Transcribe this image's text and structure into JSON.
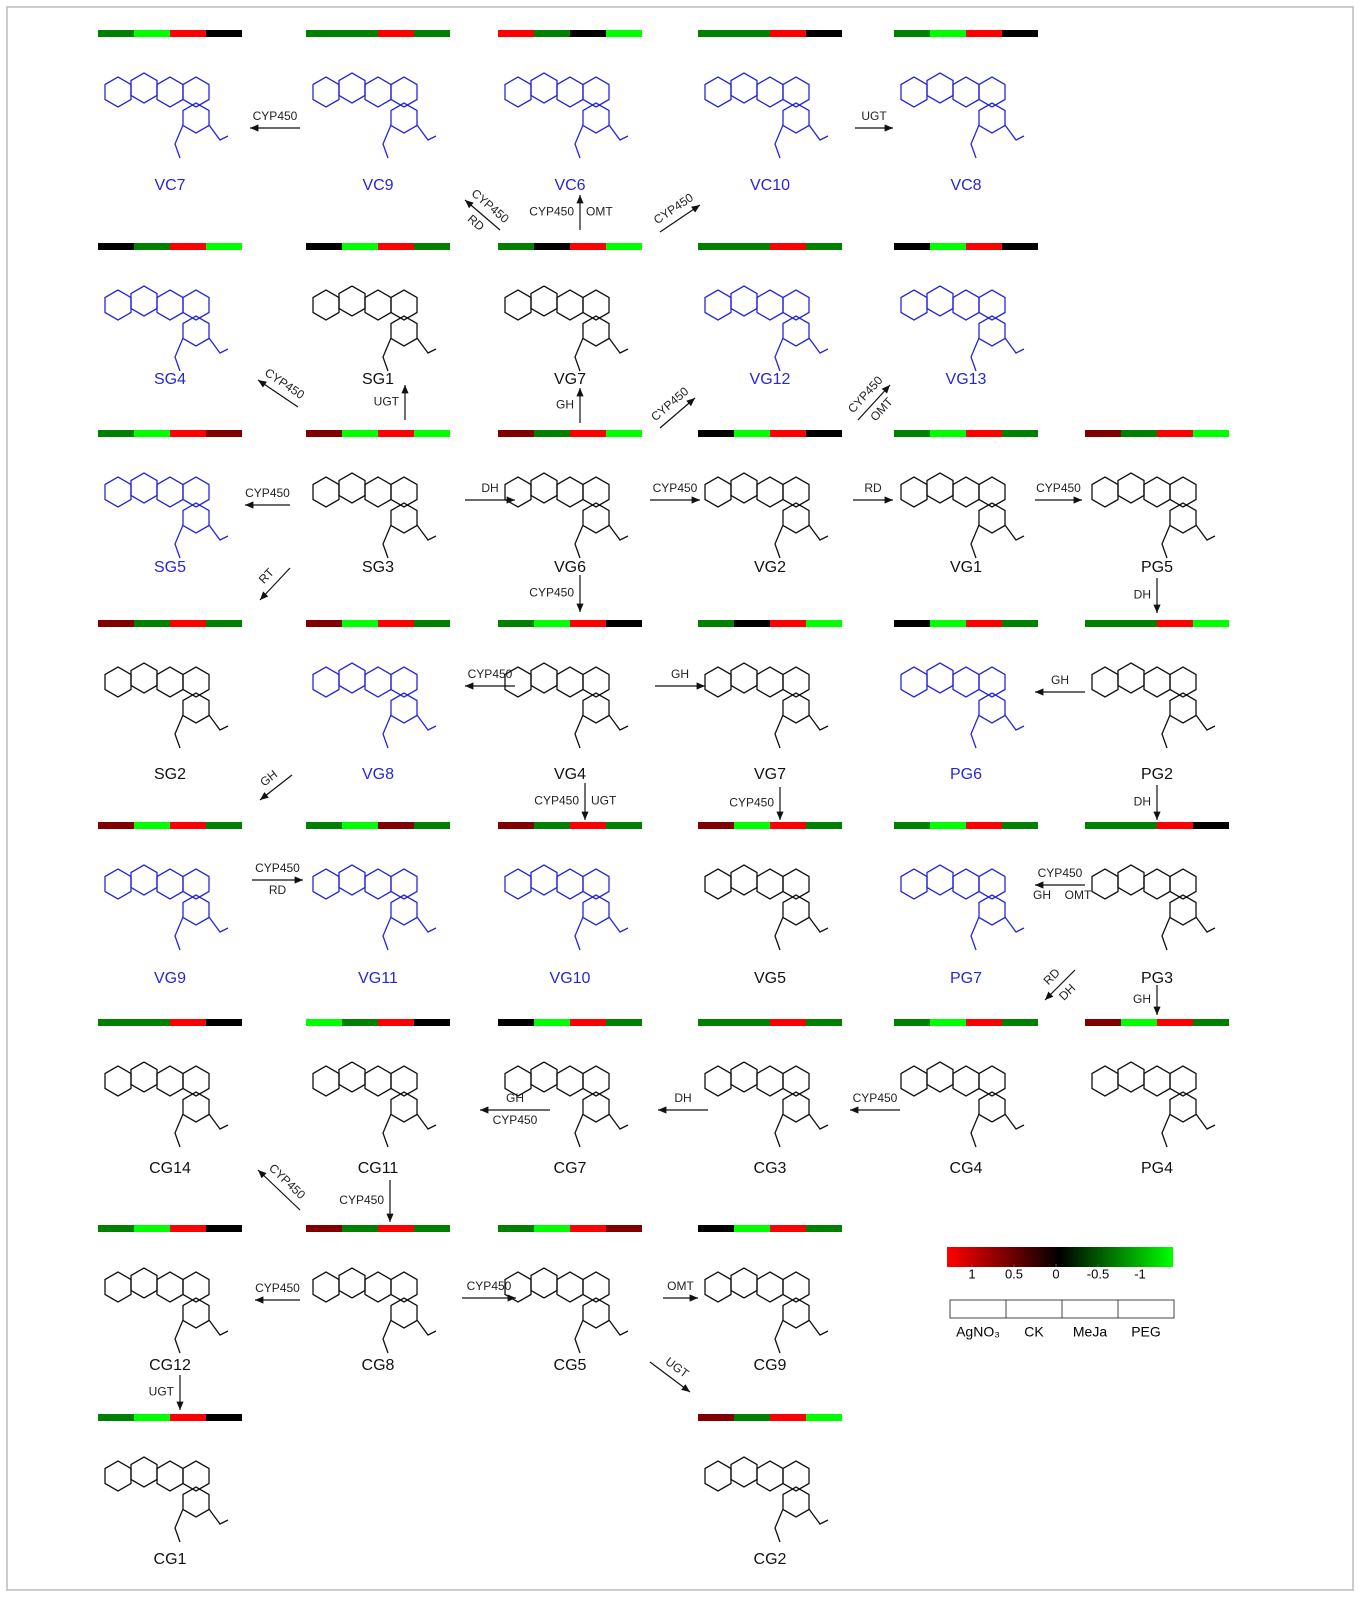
{
  "nodes": [
    {
      "label": "VC7",
      "color": "#2626d9",
      "heat": [
        -0.5,
        -1,
        1,
        0
      ]
    },
    {
      "label": "VC9",
      "color": "#2626d9",
      "heat": [
        -0.5,
        -0.5,
        1,
        -0.5
      ]
    },
    {
      "label": "VC6",
      "color": "#2626d9",
      "heat": [
        1,
        -0.5,
        0,
        -1
      ]
    },
    {
      "label": "VC10",
      "color": "#2626d9",
      "heat": [
        -0.5,
        -0.5,
        1,
        0
      ]
    },
    {
      "label": "VC8",
      "color": "#2626d9",
      "heat": [
        -0.5,
        -1,
        1,
        0
      ]
    },
    {
      "label": "SG4",
      "color": "#2626d9",
      "heat": [
        0,
        -0.5,
        1,
        -1
      ]
    },
    {
      "label": "SG1",
      "color": "#111111",
      "heat": [
        0,
        -1,
        1,
        -0.5
      ]
    },
    {
      "label": "VG7",
      "color": "#111111",
      "heat": [
        -0.5,
        0,
        1,
        -1
      ]
    },
    {
      "label": "VG12",
      "color": "#2626d9",
      "heat": [
        -0.5,
        -0.5,
        1,
        -0.5
      ]
    },
    {
      "label": "VG13",
      "color": "#2626d9",
      "heat": [
        0,
        -1,
        1,
        0
      ]
    },
    {
      "label": "SG5",
      "color": "#2626d9",
      "heat": [
        -0.5,
        -1,
        1,
        0.5
      ]
    },
    {
      "label": "SG3",
      "color": "#111111",
      "heat": [
        0.5,
        -1,
        1,
        -1
      ]
    },
    {
      "label": "VG6",
      "color": "#111111",
      "heat": [
        0.5,
        -0.5,
        1,
        -1
      ]
    },
    {
      "label": "VG2",
      "color": "#111111",
      "heat": [
        0,
        -1,
        1,
        0
      ]
    },
    {
      "label": "VG1",
      "color": "#111111",
      "heat": [
        -0.5,
        -1,
        1,
        -0.5
      ]
    },
    {
      "label": "PG5",
      "color": "#111111",
      "heat": [
        0.5,
        -0.5,
        1,
        -1
      ]
    },
    {
      "label": "SG2",
      "color": "#111111",
      "heat": [
        0.5,
        -0.5,
        1,
        -0.5
      ]
    },
    {
      "label": "VG8",
      "color": "#2626d9",
      "heat": [
        0.5,
        -1,
        1,
        -0.5
      ]
    },
    {
      "label": "VG4",
      "color": "#111111",
      "heat": [
        -0.5,
        -1,
        1,
        0
      ]
    },
    {
      "label": "VG7",
      "color": "#111111",
      "heat": [
        -0.5,
        0,
        1,
        -1
      ]
    },
    {
      "label": "PG6",
      "color": "#2626d9",
      "heat": [
        0,
        -1,
        1,
        -0.5
      ]
    },
    {
      "label": "PG2",
      "color": "#111111",
      "heat": [
        -0.5,
        -0.5,
        1,
        -1
      ]
    },
    {
      "label": "VG9",
      "color": "#2626d9",
      "heat": [
        0.5,
        -1,
        1,
        -0.5
      ]
    },
    {
      "label": "VG11",
      "color": "#2626d9",
      "heat": [
        -0.5,
        -1,
        0.5,
        -0.5
      ]
    },
    {
      "label": "VG10",
      "color": "#2626d9",
      "heat": [
        0.5,
        -0.5,
        1,
        -0.5
      ]
    },
    {
      "label": "VG5",
      "color": "#111111",
      "heat": [
        0.5,
        -1,
        1,
        -0.5
      ]
    },
    {
      "label": "PG7",
      "color": "#2626d9",
      "heat": [
        -0.5,
        -1,
        1,
        -0.5
      ]
    },
    {
      "label": "PG3",
      "color": "#111111",
      "heat": [
        -0.5,
        -0.5,
        1,
        0
      ]
    },
    {
      "label": "CG14",
      "color": "#111111",
      "heat": [
        -0.5,
        -0.5,
        1,
        0
      ]
    },
    {
      "label": "CG11",
      "color": "#111111",
      "heat": [
        -1,
        -0.5,
        1,
        0
      ]
    },
    {
      "label": "CG7",
      "color": "#111111",
      "heat": [
        0,
        -1,
        1,
        -0.5
      ]
    },
    {
      "label": "CG3",
      "color": "#111111",
      "heat": [
        -0.5,
        -0.5,
        1,
        -0.5
      ]
    },
    {
      "label": "CG4",
      "color": "#111111",
      "heat": [
        -0.5,
        -1,
        1,
        -0.5
      ]
    },
    {
      "label": "PG4",
      "color": "#111111",
      "heat": [
        0.5,
        -1,
        1,
        -0.5
      ]
    },
    {
      "label": "CG12",
      "color": "#111111",
      "heat": [
        -0.5,
        -1,
        1,
        0
      ]
    },
    {
      "label": "CG8",
      "color": "#111111",
      "heat": [
        0.5,
        -0.5,
        1,
        -0.5
      ]
    },
    {
      "label": "CG5",
      "color": "#111111",
      "heat": [
        -0.5,
        -1,
        1,
        0.5
      ]
    },
    {
      "label": "CG9",
      "color": "#111111",
      "heat": [
        0,
        -1,
        1,
        -0.5
      ]
    },
    {
      "label": "CG1",
      "color": "#111111",
      "heat": [
        -0.5,
        -1,
        1,
        0
      ]
    },
    {
      "label": "CG2",
      "color": "#111111",
      "heat": [
        0.5,
        -0.5,
        1,
        -1
      ]
    }
  ],
  "edges": [
    {
      "labels": [
        "CYP450"
      ]
    },
    {
      "labels": [
        "CYP450",
        "RD"
      ]
    },
    {
      "labels": [
        "CYP450",
        "OMT"
      ]
    },
    {
      "labels": [
        "CYP450"
      ]
    },
    {
      "labels": [
        "UGT"
      ]
    },
    {
      "labels": [
        "UGT"
      ]
    },
    {
      "labels": [
        "CYP450"
      ]
    },
    {
      "labels": [
        "GH"
      ]
    },
    {
      "labels": [
        "CYP450"
      ]
    },
    {
      "labels": [
        "CYP450",
        "OMT"
      ]
    },
    {
      "labels": [
        "CYP450"
      ]
    },
    {
      "labels": [
        "DH"
      ]
    },
    {
      "labels": [
        "CYP450"
      ]
    },
    {
      "labels": [
        "RD"
      ]
    },
    {
      "labels": [
        "CYP450"
      ]
    },
    {
      "labels": [
        "RT"
      ]
    },
    {
      "labels": [
        "CYP450"
      ]
    },
    {
      "labels": [
        "DH"
      ]
    },
    {
      "labels": [
        "CYP450"
      ]
    },
    {
      "labels": [
        "GH"
      ]
    },
    {
      "labels": [
        "GH"
      ]
    },
    {
      "labels": [
        "GH"
      ]
    },
    {
      "labels": [
        "CYP450",
        "UGT"
      ]
    },
    {
      "labels": [
        "CYP450"
      ]
    },
    {
      "labels": [
        "DH"
      ]
    },
    {
      "labels": [
        "CYP450",
        "RD"
      ]
    },
    {
      "labels": [
        "CYP450",
        "GH",
        "OMT"
      ]
    },
    {
      "labels": [
        "RD",
        "DH"
      ]
    },
    {
      "labels": [
        "GH"
      ]
    },
    {
      "labels": [
        "CYP450"
      ]
    },
    {
      "labels": [
        "DH"
      ]
    },
    {
      "labels": [
        "GH",
        "CYP450"
      ]
    },
    {
      "labels": [
        "CYP450"
      ]
    },
    {
      "labels": [
        "CYP450"
      ]
    },
    {
      "labels": [
        "CYP450"
      ]
    },
    {
      "labels": [
        "CYP450"
      ]
    },
    {
      "labels": [
        "OMT"
      ]
    },
    {
      "labels": [
        "UGT"
      ]
    },
    {
      "labels": [
        "UGT"
      ]
    }
  ],
  "legend": {
    "colors": {
      "high": "#ff0000",
      "mid": "#000000",
      "low": "#00ff00"
    },
    "lim": [
      1,
      -1
    ],
    "ticks": [
      1,
      0.5,
      0,
      -0.5,
      -1
    ],
    "conditions": [
      "AgNO₃",
      "CK",
      "MeJa",
      "PEG"
    ]
  }
}
